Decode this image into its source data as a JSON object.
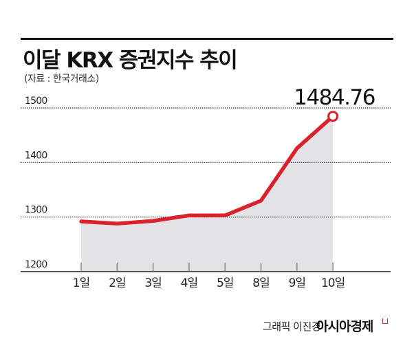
{
  "header": {
    "title": "이달 KRX 증권지수 추이",
    "source": "(자료 : 한국거래소)"
  },
  "footer": {
    "credit": "그래픽 이진경",
    "brand": "아시아경제"
  },
  "colors": {
    "line": "#d8232a",
    "area": "#e3e3e6",
    "grid": "#333333",
    "text": "#111111"
  },
  "chart_data": {
    "type": "area",
    "title": "이달 KRX 증권지수 추이",
    "subtitle": "(자료 : 한국거래소)",
    "xlabel": "",
    "ylabel": "",
    "categories": [
      "1일",
      "2일",
      "3일",
      "4일",
      "5일",
      "8일",
      "9일",
      "10일"
    ],
    "series": [
      {
        "name": "KRX 증권지수",
        "values": [
          1292,
          1288,
          1293,
          1303,
          1303,
          1330,
          1426,
          1484.76
        ]
      }
    ],
    "yticks": [
      "1200",
      "1300",
      "1400",
      "1500"
    ],
    "ylim": [
      1200,
      1500
    ],
    "grid": true,
    "grid_style": "dotted",
    "annotations": [
      {
        "category": "10일",
        "value": 1484.76,
        "label": "1484.76",
        "marker": "hollow-circle"
      }
    ],
    "legend": null
  }
}
